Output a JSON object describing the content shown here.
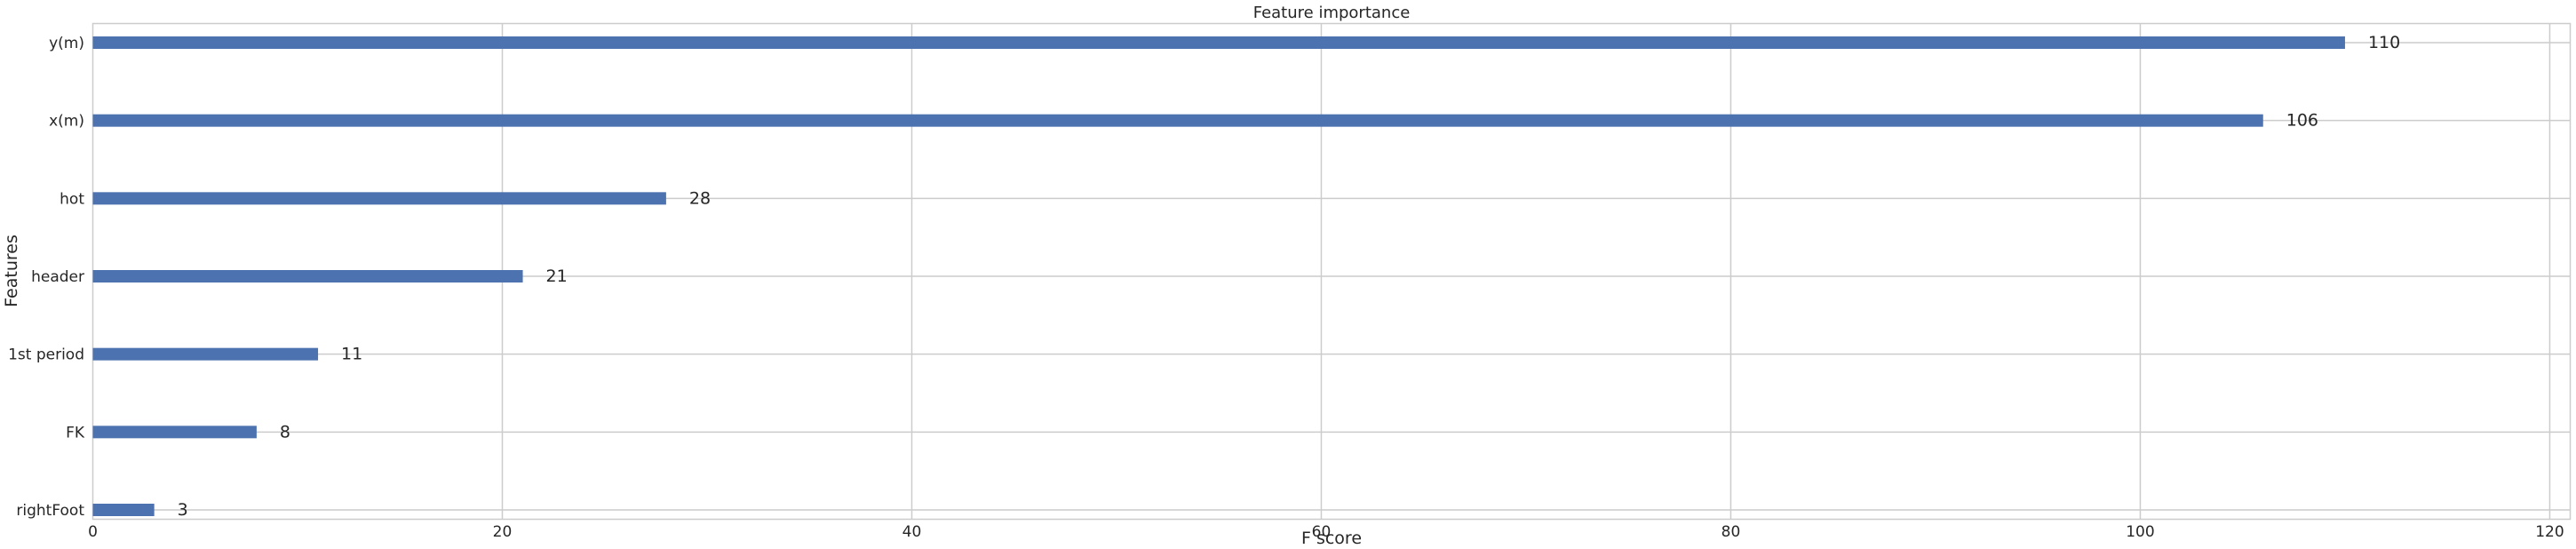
{
  "chart_data": {
    "type": "bar",
    "orientation": "horizontal",
    "title": "Feature importance",
    "xlabel": "F score",
    "ylabel": "Features",
    "categories": [
      "y(m)",
      "x(m)",
      "hot",
      "header",
      "1st period",
      "FK",
      "rightFoot"
    ],
    "values": [
      110,
      106,
      28,
      21,
      11,
      8,
      3
    ],
    "xlim": [
      0,
      121
    ],
    "xticks": [
      0,
      20,
      40,
      60,
      80,
      100,
      120
    ],
    "grid": true,
    "bar_color": "#4c72b0",
    "grid_color": "#cccccc"
  }
}
